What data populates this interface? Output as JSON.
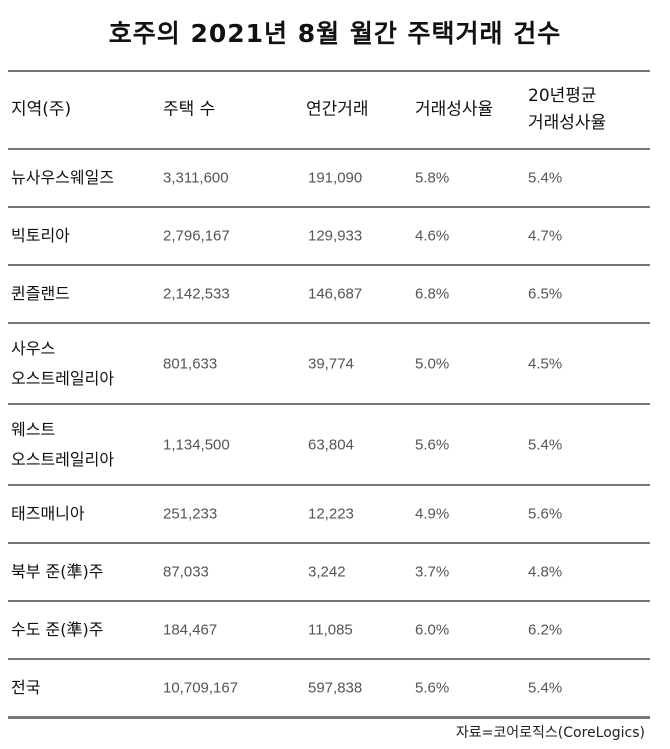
{
  "title": "호주의 2021년 8월 월간 주택거래 건수",
  "headers": [
    "지역(주)",
    "주택 수",
    "연간거래",
    "거래성사율",
    "20년평균",
    "거래성사율"
  ],
  "rows": [
    {
      "region": [
        "뉴사우스웨일즈"
      ],
      "houses": "3,311,600",
      "annual": "191,090",
      "rate": "5.8%",
      "avg20": "5.4%"
    },
    {
      "region": [
        "빅토리아"
      ],
      "houses": "2,796,167",
      "annual": "129,933",
      "rate": "4.6%",
      "avg20": "4.7%"
    },
    {
      "region": [
        "퀸즐랜드"
      ],
      "houses": "2,142,533",
      "annual": "146,687",
      "rate": "6.8%",
      "avg20": "6.5%"
    },
    {
      "region": [
        "사우스",
        "오스트레일리아"
      ],
      "houses": "801,633",
      "annual": "39,774",
      "rate": "5.0%",
      "avg20": "4.5%"
    },
    {
      "region": [
        "웨스트",
        "오스트레일리아"
      ],
      "houses": "1,134,500",
      "annual": "63,804",
      "rate": "5.6%",
      "avg20": "5.4%"
    },
    {
      "region": [
        "태즈매니아"
      ],
      "houses": "251,233",
      "annual": "12,223",
      "rate": "4.9%",
      "avg20": "5.6%"
    },
    {
      "region": [
        "북부 준(準)주"
      ],
      "houses": "87,033",
      "annual": "3,242",
      "rate": "3.7%",
      "avg20": "4.8%"
    },
    {
      "region": [
        "수도 준(準)주"
      ],
      "houses": "184,467",
      "annual": "11,085",
      "rate": "6.0%",
      "avg20": "6.2%"
    },
    {
      "region": [
        "전국"
      ],
      "houses": "10,709,167",
      "annual": "597,838",
      "rate": "5.6%",
      "avg20": "5.4%"
    }
  ],
  "source": "자료=코어로직스(CoreLogics)"
}
